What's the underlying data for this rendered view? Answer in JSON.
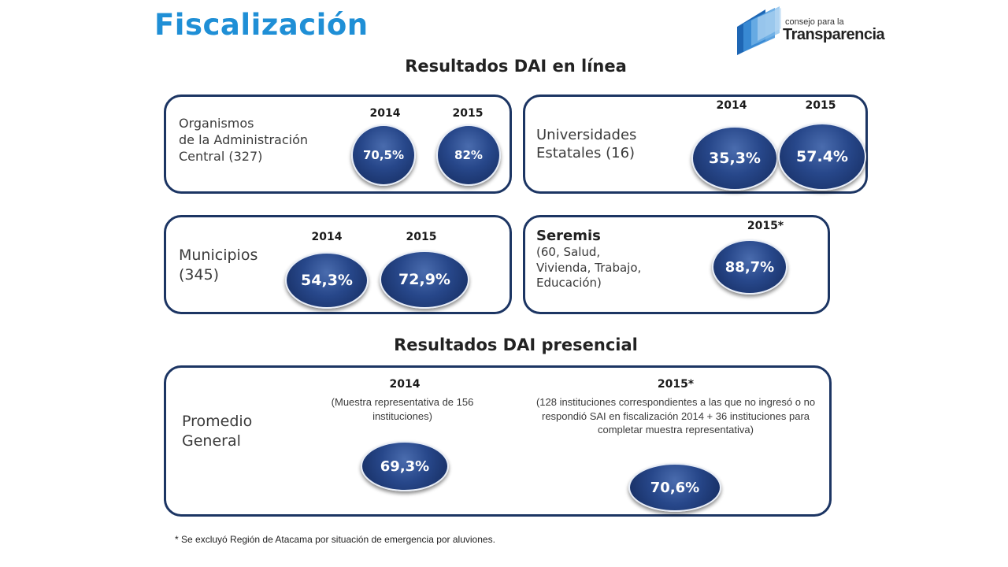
{
  "header": {
    "title": "Fiscalización"
  },
  "logo": {
    "line1": "consejo para la",
    "line2": "Transparencia"
  },
  "online": {
    "section_title": "Resultados DAI en línea",
    "admin": {
      "label_1": "Organismos",
      "label_2": "de la Administración",
      "label_3": "Central (327)",
      "year_a": "2014",
      "year_b": "2015",
      "value_a": "70,5%",
      "value_b": "82%"
    },
    "universidades": {
      "label_1": "Universidades",
      "label_2": "Estatales (16)",
      "year_a": "2014",
      "year_b": "2015",
      "value_a": "35,3%",
      "value_b": "57.4%"
    },
    "municipios": {
      "label_1": "Municipios",
      "label_2": "(345)",
      "year_a": "2014",
      "year_b": "2015",
      "value_a": "54,3%",
      "value_b": "72,9%"
    },
    "seremis": {
      "label_bold": "Seremis",
      "label_1": "(60, Salud,",
      "label_2": "Vivienda, Trabajo,",
      "label_3": "Educación)",
      "year": "2015*",
      "value": "88,7%"
    }
  },
  "presencial": {
    "section_title": "Resultados DAI presencial",
    "label_1": "Promedio",
    "label_2": "General",
    "year_a": "2014",
    "note_a": "(Muestra representativa de 156 instituciones)",
    "value_a": "69,3%",
    "year_b": "2015*",
    "note_b": "(128 instituciones correspondientes a las que no ingresó o no respondió SAI en fiscalización 2014 + 36 instituciones para completar muestra representativa)",
    "value_b": "70,6%"
  },
  "footnote": "* Se excluyó Región de Atacama por situación de emergencia por aluviones."
}
